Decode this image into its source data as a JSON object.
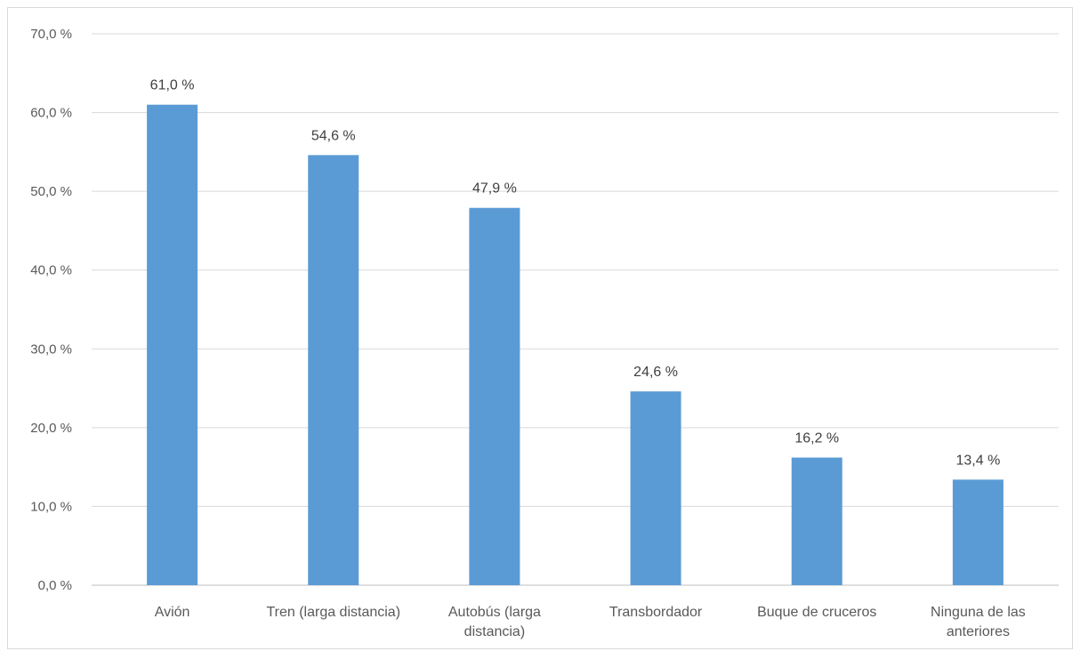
{
  "chart_data": {
    "type": "bar",
    "title": "",
    "xlabel": "",
    "ylabel": "",
    "categories": [
      [
        "Avión"
      ],
      [
        "Tren (larga distancia)"
      ],
      [
        "Autobús (larga",
        "distancia)"
      ],
      [
        "Transbordador"
      ],
      [
        "Buque de cruceros"
      ],
      [
        "Ninguna de las",
        "anteriores"
      ]
    ],
    "values": [
      61.0,
      54.6,
      47.9,
      24.6,
      16.2,
      13.4
    ],
    "data_labels": [
      "61,0 %",
      "54,6 %",
      "47,9 %",
      "24,6 %",
      "16,2 %",
      "13,4 %"
    ],
    "y_ticks": [
      0,
      10,
      20,
      30,
      40,
      50,
      60,
      70
    ],
    "y_tick_labels": [
      "0,0 %",
      "10,0 %",
      "20,0 %",
      "30,0 %",
      "40,0 %",
      "50,0 %",
      "60,0 %",
      "70,0 %"
    ],
    "ylim": [
      0,
      70
    ],
    "grid": true,
    "legend": "none",
    "bar_color": "#5b9bd5"
  }
}
